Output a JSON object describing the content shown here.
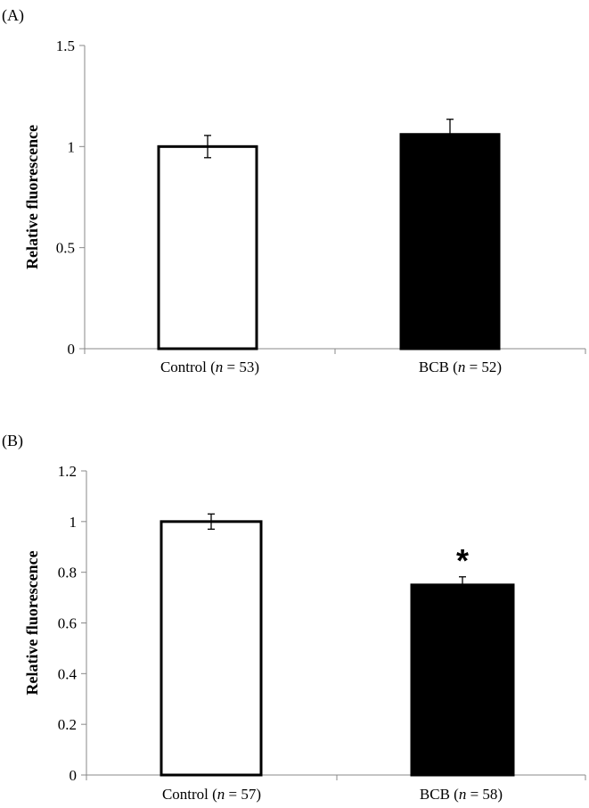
{
  "chart_data": [
    {
      "type": "bar",
      "panel_label": "(A)",
      "ylabel": "Relative fluorescence",
      "ylim": [
        0,
        1.5
      ],
      "yticks": [
        "0",
        "0.5",
        "1",
        "1.5"
      ],
      "categories": [
        "Control (n = 53)",
        "BCB (n = 52)"
      ],
      "category_parts": [
        {
          "pre": "Control (",
          "n": "n",
          "post": " = 53)"
        },
        {
          "pre": "BCB (",
          "n": "n",
          "post": " = 52)"
        }
      ],
      "values": [
        1.0,
        1.06
      ],
      "errors": [
        0.055,
        0.075
      ],
      "bar_colors": [
        "#ffffff",
        "#000000"
      ],
      "significance": [
        "",
        ""
      ],
      "grid": false,
      "legend": "none"
    },
    {
      "type": "bar",
      "panel_label": "(B)",
      "ylabel": "Relative fluorescence",
      "ylim": [
        0,
        1.2
      ],
      "yticks": [
        "0",
        "0.2",
        "0.4",
        "0.6",
        "0.8",
        "1",
        "1.2"
      ],
      "categories": [
        "Control (n = 57)",
        "BCB (n = 58)"
      ],
      "category_parts": [
        {
          "pre": "Control (",
          "n": "n",
          "post": " = 57)"
        },
        {
          "pre": "BCB (",
          "n": "n",
          "post": " = 58)"
        }
      ],
      "values": [
        1.0,
        0.75
      ],
      "errors": [
        0.03,
        0.032
      ],
      "bar_colors": [
        "#ffffff",
        "#000000"
      ],
      "significance": [
        "",
        "*"
      ],
      "grid": false,
      "legend": "none"
    }
  ]
}
